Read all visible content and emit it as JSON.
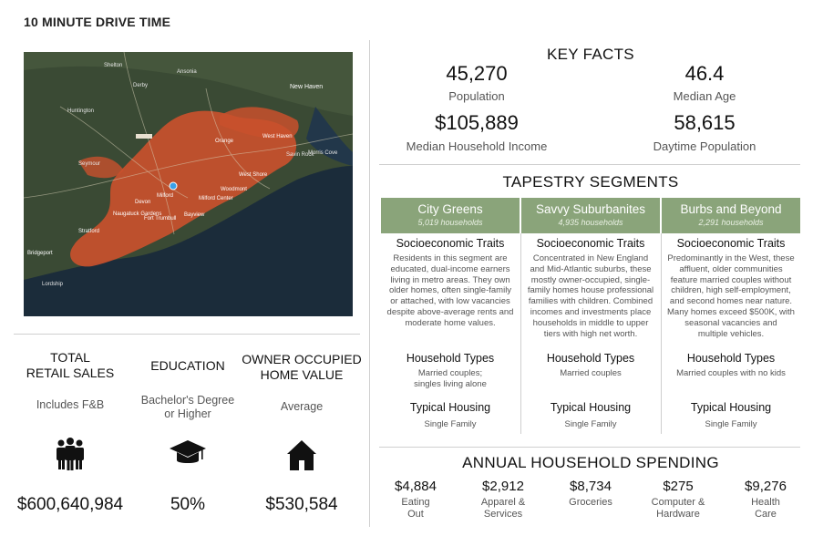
{
  "page_title": "10 MINUTE DRIVE TIME",
  "map": {
    "place_labels": [
      "Shelton",
      "Ansonia",
      "Derby",
      "New Haven",
      "Huntington",
      "Orange",
      "West Haven",
      "Seymour",
      "Milford",
      "Stratford",
      "Devon",
      "Woodmont",
      "Bayview",
      "Fort Trumbull",
      "Naugatuck Gardens",
      "Milford Center",
      "Lordship",
      "Bridgeport",
      "Morris Cove",
      "West Shore",
      "Savin Rock"
    ],
    "colors": {
      "land": "#3a4a34",
      "water": "#1b2c3a",
      "drive_area": "#c9502d"
    }
  },
  "left_metrics": [
    {
      "label_line1": "TOTAL",
      "label_line2": "RETAIL SALES",
      "sub_line1": "Includes F&B",
      "sub_line2": "",
      "icon": "people-group-icon",
      "value": "$600,640,984"
    },
    {
      "label_line1": "EDUCATION",
      "label_line2": "",
      "sub_line1": "Bachelor's Degree",
      "sub_line2": "or Higher",
      "icon": "graduation-cap-icon",
      "value": "50%"
    },
    {
      "label_line1": "OWNER OCCUPIED",
      "label_line2": "HOME VALUE",
      "sub_line1": "Average",
      "sub_line2": "",
      "icon": "house-icon",
      "value": "$530,584"
    }
  ],
  "key_facts": {
    "heading": "KEY FACTS",
    "items": [
      {
        "value": "45,270",
        "label": "Population"
      },
      {
        "value": "46.4",
        "label": "Median Age"
      },
      {
        "value": "$105,889",
        "label": "Median Household Income"
      },
      {
        "value": "58,615",
        "label": "Daytime Population"
      }
    ]
  },
  "tapestry": {
    "heading": "TAPESTRY SEGMENTS",
    "segments": [
      {
        "name": "City Greens",
        "households": "5,019 households",
        "traits_heading": "Socioeconomic Traits",
        "traits_lines": [
          "Residents in this segment are",
          "educated, dual-income earners",
          "living in metro areas. They own",
          "older homes, often single-family",
          "or attached, with low vacancies",
          "despite above-average rents and",
          "moderate home values."
        ],
        "types_heading": "Household Types",
        "types_lines": [
          "Married couples;",
          "singles living alone"
        ],
        "housing_heading": "Typical Housing",
        "housing": "Single Family"
      },
      {
        "name": "Savvy Suburbanites",
        "households": "4,935 households",
        "traits_heading": "Socioeconomic Traits",
        "traits_lines": [
          "Concentrated in New England",
          "and Mid-Atlantic suburbs, these",
          "mostly owner-occupied, single-",
          "family homes house professional",
          "families with children. Combined",
          "incomes and investments place",
          "households in middle to upper",
          "tiers with high net worth."
        ],
        "types_heading": "Household Types",
        "types_lines": [
          "Married couples"
        ],
        "housing_heading": "Typical Housing",
        "housing": "Single Family"
      },
      {
        "name": "Burbs and Beyond",
        "households": "2,291 households",
        "traits_heading": "Socioeconomic Traits",
        "traits_lines": [
          "Predominantly in the West, these",
          "affluent, older communities",
          "feature married couples without",
          "children, high self-employment,",
          "and second homes near nature.",
          "Many homes exceed $500K, with",
          "seasonal vacancies and",
          "multiple vehicles."
        ],
        "types_heading": "Household Types",
        "types_lines": [
          "Married couples with no kids"
        ],
        "housing_heading": "Typical Housing",
        "housing": "Single Family"
      }
    ],
    "header_color": "#8aa47a"
  },
  "spending": {
    "heading": "ANNUAL HOUSEHOLD SPENDING",
    "items": [
      {
        "value": "$4,884",
        "label_line1": "Eating",
        "label_line2": "Out"
      },
      {
        "value": "$2,912",
        "label_line1": "Apparel &",
        "label_line2": "Services"
      },
      {
        "value": "$8,734",
        "label_line1": "Groceries",
        "label_line2": ""
      },
      {
        "value": "$275",
        "label_line1": "Computer &",
        "label_line2": "Hardware"
      },
      {
        "value": "$9,276",
        "label_line1": "Health",
        "label_line2": "Care"
      }
    ]
  }
}
